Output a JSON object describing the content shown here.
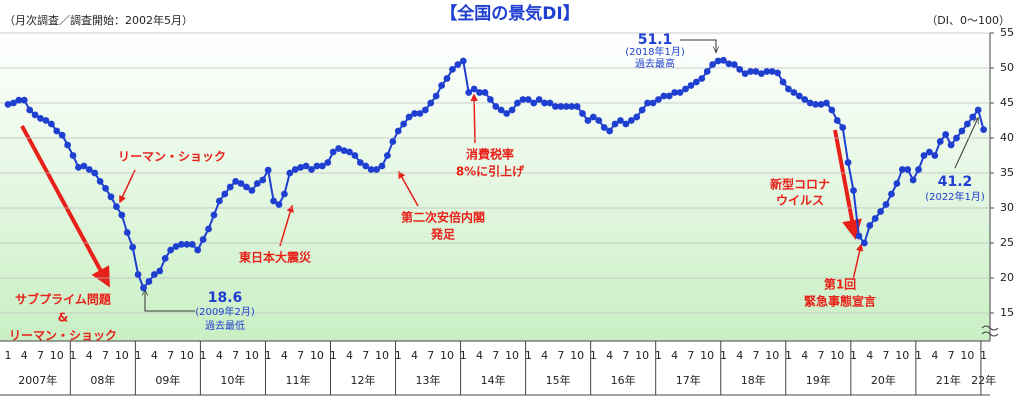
{
  "chart_data": {
    "type": "line",
    "title": "【全国の景気DI】",
    "subtitle": "（月次調査／調査開始：2002年5月）",
    "unit_label": "（DI、0～100）",
    "categories": [
      "1",
      null,
      null,
      "4",
      null,
      null,
      "7",
      null,
      null,
      "10",
      null,
      null,
      "1",
      null,
      null,
      "4",
      null,
      null,
      "7",
      null,
      null,
      "10",
      null,
      null,
      "1",
      null,
      null,
      "4",
      null,
      null,
      "7",
      null,
      null,
      "10",
      null,
      null,
      "1",
      null,
      null,
      "4",
      null,
      null,
      "7",
      null,
      null,
      "10",
      null,
      null,
      "1",
      null,
      null,
      "4",
      null,
      null,
      "7",
      null,
      null,
      "10",
      null,
      null,
      "1",
      null,
      null,
      "4",
      null,
      null,
      "7",
      null,
      null,
      "10",
      null,
      null,
      "1",
      null,
      null,
      "4",
      null,
      null,
      "7",
      null,
      null,
      "10",
      null,
      null,
      "1",
      null,
      null,
      "4",
      null,
      null,
      "7",
      null,
      null,
      "10",
      null,
      null,
      "1",
      null,
      null,
      "4",
      null,
      null,
      "7",
      null,
      null,
      "10",
      null,
      null,
      "1",
      null,
      null,
      "4",
      null,
      null,
      "7",
      null,
      null,
      "10",
      null,
      null,
      "1",
      null,
      null,
      "4",
      null,
      null,
      "7",
      null,
      null,
      "10",
      null,
      null,
      "1",
      null,
      null,
      "4",
      null,
      null,
      "7",
      null,
      null,
      "10",
      null,
      null,
      "1",
      null,
      null,
      "4",
      null,
      null,
      "7",
      null,
      null,
      "10",
      null,
      null,
      "1",
      null,
      null,
      "4",
      null,
      null,
      "7",
      null,
      null,
      "10",
      null,
      null,
      "1",
      null,
      null,
      "4",
      null,
      null,
      "7",
      null,
      null,
      "10",
      null,
      null,
      "1"
    ],
    "year_labels": [
      "2007年",
      "08年",
      "09年",
      "10年",
      "11年",
      "12年",
      "13年",
      "14年",
      "15年",
      "16年",
      "17年",
      "18年",
      "19年",
      "20年",
      "21年",
      "22年"
    ],
    "values": [
      44.8,
      45.0,
      45.4,
      45.4,
      44.0,
      43.3,
      42.8,
      42.5,
      42.0,
      41.0,
      40.4,
      39.0,
      37.5,
      35.8,
      36.0,
      35.5,
      35.0,
      33.8,
      32.8,
      31.6,
      30.2,
      29.0,
      26.5,
      24.4,
      20.5,
      18.6,
      19.5,
      20.5,
      21.0,
      22.8,
      24.0,
      24.5,
      24.8,
      24.8,
      24.8,
      24.0,
      25.5,
      27.0,
      29.0,
      31.0,
      32.0,
      33.0,
      33.8,
      33.5,
      33.0,
      32.5,
      33.5,
      34.0,
      35.4,
      31.0,
      30.5,
      32.0,
      35.0,
      35.5,
      35.8,
      36.0,
      35.5,
      36.0,
      36.0,
      36.5,
      38.0,
      38.5,
      38.2,
      38.0,
      37.5,
      36.5,
      36.0,
      35.5,
      35.5,
      36.0,
      37.5,
      39.5,
      41.0,
      42.0,
      43.0,
      43.5,
      43.5,
      44.0,
      45.0,
      46.0,
      47.5,
      48.5,
      49.8,
      50.5,
      51.0,
      46.5,
      47.0,
      46.5,
      46.5,
      45.5,
      44.5,
      44.0,
      43.5,
      44.0,
      45.0,
      45.5,
      45.5,
      45.0,
      45.5,
      45.0,
      45.0,
      44.5,
      44.5,
      44.5,
      44.5,
      44.5,
      43.5,
      42.5,
      43.0,
      42.5,
      41.5,
      41.0,
      42.0,
      42.5,
      42.0,
      42.5,
      43.0,
      44.0,
      45.0,
      45.0,
      45.5,
      46.0,
      46.0,
      46.5,
      46.5,
      47.0,
      47.5,
      48.0,
      48.5,
      49.5,
      50.5,
      51.0,
      51.1,
      50.6,
      50.5,
      49.8,
      49.2,
      49.5,
      49.5,
      49.2,
      49.5,
      49.5,
      49.3,
      48.0,
      47.0,
      46.5,
      46.0,
      45.5,
      45.0,
      44.8,
      44.8,
      45.0,
      44.0,
      42.5,
      41.5,
      36.5,
      32.5,
      26.0,
      25.0,
      27.5,
      28.5,
      29.5,
      30.5,
      32.0,
      33.5,
      35.5,
      35.5,
      34.0,
      35.5,
      37.5,
      38.0,
      37.5,
      39.5,
      40.5,
      39.0,
      40.0,
      41.0,
      42.0,
      43.0,
      44.0,
      41.2
    ],
    "color": "#1f3fd0",
    "ylim": [
      11,
      55
    ],
    "yticks": [
      15,
      20,
      25,
      30,
      35,
      40,
      45,
      50,
      55
    ],
    "grid": true,
    "annotations": [
      {
        "lines": [
          "リーマン・ショック"
        ],
        "color": "#e8201a"
      },
      {
        "lines": [
          "東日本大震災"
        ],
        "color": "#e8201a"
      },
      {
        "lines": [
          "消費税率",
          "8%に引上げ"
        ],
        "color": "#e8201a"
      },
      {
        "lines": [
          "第二次安倍内閣",
          "発足"
        ],
        "color": "#e8201a"
      },
      {
        "lines": [
          "新型コロナ",
          "ウイルス"
        ],
        "color": "#e8201a"
      },
      {
        "lines": [
          "第1回",
          "緊急事態宣言"
        ],
        "color": "#e8201a"
      },
      {
        "lines": [
          "サブプライム問題",
          "&",
          "リーマン・ショック"
        ],
        "color": "#e8201a"
      },
      {
        "lines": [
          "18.6",
          "(2009年2月)",
          "過去最低"
        ],
        "color": "#1f3fd0"
      },
      {
        "lines": [
          "51.1",
          "(2018年1月)",
          "過去最高"
        ],
        "color": "#1f3fd0"
      },
      {
        "lines": [
          "41.2",
          "(2022年1月)"
        ],
        "color": "#1f3fd0"
      }
    ]
  }
}
